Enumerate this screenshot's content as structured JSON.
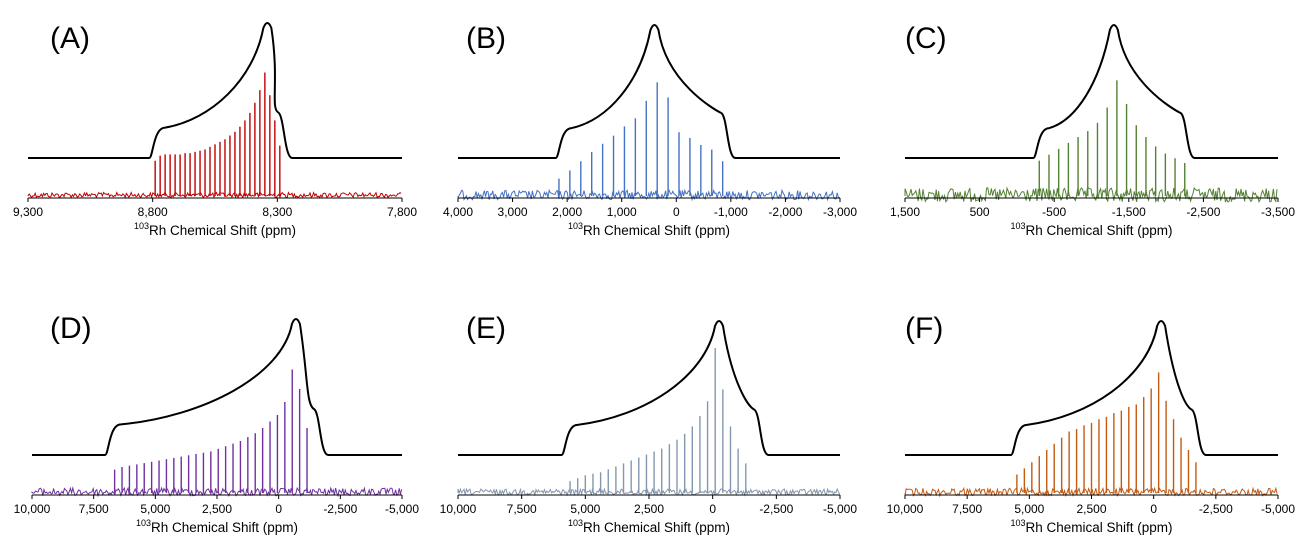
{
  "figure": {
    "background": "#ffffff"
  },
  "chart_data": [
    {
      "panel": "(A)",
      "type": "line",
      "color": "#c00000",
      "xlabel_sup": "103",
      "xlabel": "Rh Chemical Shift (ppm)",
      "xlim": [
        9300,
        7800
      ],
      "xticks": [
        9300,
        8800,
        8300,
        7800
      ],
      "tick_labels": [
        "9,300",
        "8,800",
        "8,300",
        "7,800"
      ],
      "simulated_lineshape": {
        "delta_11": 8790,
        "delta_22": 8340,
        "delta_33": 8280,
        "peak": 8340
      },
      "experimental_spikes": {
        "x": [
          8790,
          8770,
          8750,
          8730,
          8710,
          8690,
          8670,
          8650,
          8630,
          8610,
          8590,
          8570,
          8550,
          8530,
          8510,
          8490,
          8470,
          8450,
          8430,
          8410,
          8390,
          8370,
          8350,
          8330,
          8310,
          8290
        ],
        "y": [
          0.28,
          0.32,
          0.33,
          0.33,
          0.33,
          0.33,
          0.34,
          0.34,
          0.35,
          0.36,
          0.37,
          0.39,
          0.41,
          0.43,
          0.45,
          0.48,
          0.51,
          0.55,
          0.6,
          0.66,
          0.74,
          0.84,
          0.98,
          0.8,
          0.6,
          0.4
        ]
      },
      "noise_level": 0.02
    },
    {
      "panel": "(B)",
      "type": "line",
      "color": "#4472c4",
      "xlabel_sup": "103",
      "xlabel": "Rh Chemical Shift (ppm)",
      "xlim": [
        4000,
        -3000
      ],
      "xticks": [
        4000,
        3000,
        2000,
        1000,
        0,
        -1000,
        -2000,
        -3000
      ],
      "tick_labels": [
        "4,000",
        "3,000",
        "2,000",
        "1,000",
        "0",
        "-1,000",
        "-2,000",
        "-3,000"
      ],
      "simulated_lineshape": {
        "delta_11": 2100,
        "delta_22": 400,
        "delta_33": -900,
        "peak": 400
      },
      "experimental_spikes": {
        "x": [
          2150,
          1950,
          1750,
          1550,
          1350,
          1150,
          950,
          750,
          550,
          350,
          150,
          -50,
          -250,
          -450,
          -650,
          -850
        ],
        "y": [
          0.15,
          0.22,
          0.3,
          0.38,
          0.45,
          0.52,
          0.6,
          0.67,
          0.82,
          0.98,
          0.85,
          0.55,
          0.5,
          0.44,
          0.4,
          0.3
        ]
      },
      "noise_level": 0.04
    },
    {
      "panel": "(C)",
      "type": "line",
      "color": "#548235",
      "xlabel_sup": "103",
      "xlabel": "Rh Chemical Shift (ppm)",
      "xlim": [
        1500,
        -3500
      ],
      "xticks": [
        1500,
        500,
        -500,
        -1500,
        -2500,
        -3500
      ],
      "tick_labels": [
        "1,500",
        "500",
        "-500",
        "-1,500",
        "-2,500",
        "-3,500"
      ],
      "simulated_lineshape": {
        "delta_11": -300,
        "delta_22": -1300,
        "delta_33": -2250,
        "peak": -1300
      },
      "experimental_spikes": {
        "x": [
          -300,
          -430,
          -560,
          -690,
          -820,
          -950,
          -1080,
          -1210,
          -1340,
          -1470,
          -1600,
          -1730,
          -1860,
          -1990,
          -2120,
          -2250
        ],
        "y": [
          0.3,
          0.35,
          0.4,
          0.45,
          0.5,
          0.55,
          0.62,
          0.75,
          0.98,
          0.78,
          0.6,
          0.5,
          0.42,
          0.36,
          0.32,
          0.28
        ]
      },
      "noise_level": 0.06
    },
    {
      "panel": "(D)",
      "type": "line",
      "color": "#7030a0",
      "xlabel_sup": "103",
      "xlabel": "Rh Chemical Shift (ppm)",
      "xlim": [
        10000,
        -5000
      ],
      "xticks": [
        10000,
        7500,
        5000,
        2500,
        0,
        -2500,
        -5000
      ],
      "tick_labels": [
        "10,000",
        "7,500",
        "5,000",
        "2,500",
        "0",
        "-2,500",
        "-5,000"
      ],
      "simulated_lineshape": {
        "delta_11": 6800,
        "delta_22": -700,
        "delta_33": -1600,
        "peak": -700
      },
      "experimental_spikes": {
        "x": [
          6650,
          6350,
          6050,
          5750,
          5450,
          5150,
          4850,
          4550,
          4250,
          3950,
          3650,
          3350,
          3050,
          2750,
          2450,
          2150,
          1850,
          1550,
          1250,
          950,
          650,
          350,
          50,
          -250,
          -550,
          -850,
          -1150
        ],
        "y": [
          0.18,
          0.2,
          0.21,
          0.22,
          0.23,
          0.24,
          0.25,
          0.26,
          0.27,
          0.28,
          0.29,
          0.3,
          0.31,
          0.32,
          0.34,
          0.36,
          0.38,
          0.4,
          0.43,
          0.46,
          0.5,
          0.55,
          0.6,
          0.7,
          0.95,
          0.8,
          0.5
        ]
      },
      "noise_level": 0.03
    },
    {
      "panel": "(E)",
      "type": "line",
      "color": "#8497b0",
      "xlabel_sup": "103",
      "xlabel": "Rh Chemical Shift (ppm)",
      "xlim": [
        10000,
        -5000
      ],
      "xticks": [
        10000,
        7500,
        5000,
        2500,
        0,
        -2500,
        -5000
      ],
      "tick_labels": [
        "10,000",
        "7,500",
        "5,000",
        "2,500",
        "0",
        "-2,500",
        "-5,000"
      ],
      "simulated_lineshape": {
        "delta_11": 5700,
        "delta_22": -250,
        "delta_33": -1800,
        "peak": -250
      },
      "experimental_spikes": {
        "x": [
          5600,
          5300,
          5000,
          4700,
          4400,
          4100,
          3800,
          3500,
          3200,
          2900,
          2600,
          2300,
          2000,
          1700,
          1400,
          1100,
          800,
          500,
          200,
          -100,
          -400,
          -700,
          -1000,
          -1300
        ],
        "y": [
          0.08,
          0.1,
          0.12,
          0.13,
          0.14,
          0.16,
          0.18,
          0.2,
          0.22,
          0.24,
          0.26,
          0.28,
          0.3,
          0.33,
          0.36,
          0.4,
          0.45,
          0.52,
          0.62,
          0.98,
          0.7,
          0.45,
          0.3,
          0.2
        ]
      },
      "noise_level": 0.02
    },
    {
      "panel": "(F)",
      "type": "line",
      "color": "#c55a11",
      "xlabel_sup": "103",
      "xlabel": "Rh Chemical Shift (ppm)",
      "xlim": [
        10000,
        -5000
      ],
      "xticks": [
        10000,
        7500,
        5000,
        2500,
        0,
        -2500,
        -5000
      ],
      "tick_labels": [
        "10,000",
        "7,500",
        "5,000",
        "2,500",
        "0",
        "-2,500",
        "-5,000"
      ],
      "simulated_lineshape": {
        "delta_11": 5500,
        "delta_22": -300,
        "delta_33": -1700,
        "peak": -300
      },
      "experimental_spikes": {
        "x": [
          5500,
          5200,
          4900,
          4600,
          4300,
          4000,
          3700,
          3400,
          3100,
          2800,
          2500,
          2200,
          1900,
          1600,
          1300,
          1000,
          700,
          400,
          100,
          -200,
          -500,
          -800,
          -1100,
          -1400,
          -1700
        ],
        "y": [
          0.15,
          0.2,
          0.25,
          0.3,
          0.35,
          0.4,
          0.45,
          0.5,
          0.52,
          0.55,
          0.57,
          0.6,
          0.62,
          0.65,
          0.67,
          0.7,
          0.72,
          0.78,
          0.85,
          0.98,
          0.75,
          0.6,
          0.45,
          0.35,
          0.25
        ]
      },
      "noise_level": 0.03
    }
  ]
}
